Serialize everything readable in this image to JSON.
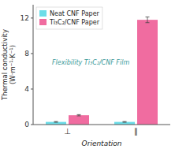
{
  "chart_data": {
    "type": "bar",
    "categories": [
      "⊥",
      "∥"
    ],
    "series": [
      {
        "name": "Neat CNF Paper",
        "color": "#6ddde8",
        "values": [
          0.3,
          0.3
        ],
        "errors": [
          0.04,
          0.04
        ]
      },
      {
        "name": "Ti₃C₂/CNF Paper",
        "color": "#f06ca0",
        "values": [
          1.05,
          11.8
        ],
        "errors": [
          0.07,
          0.32
        ]
      }
    ],
    "xlabel": "Orientation",
    "ylabel": "Thermal conductivity\n(W·m⁻¹·K⁻¹)",
    "ylim": [
      0,
      13.5
    ],
    "yticks": [
      0,
      4,
      8,
      12
    ],
    "grid": false,
    "legend": "upper left",
    "annotation": "Flexibility Ti₃C₂/CNF Film"
  }
}
